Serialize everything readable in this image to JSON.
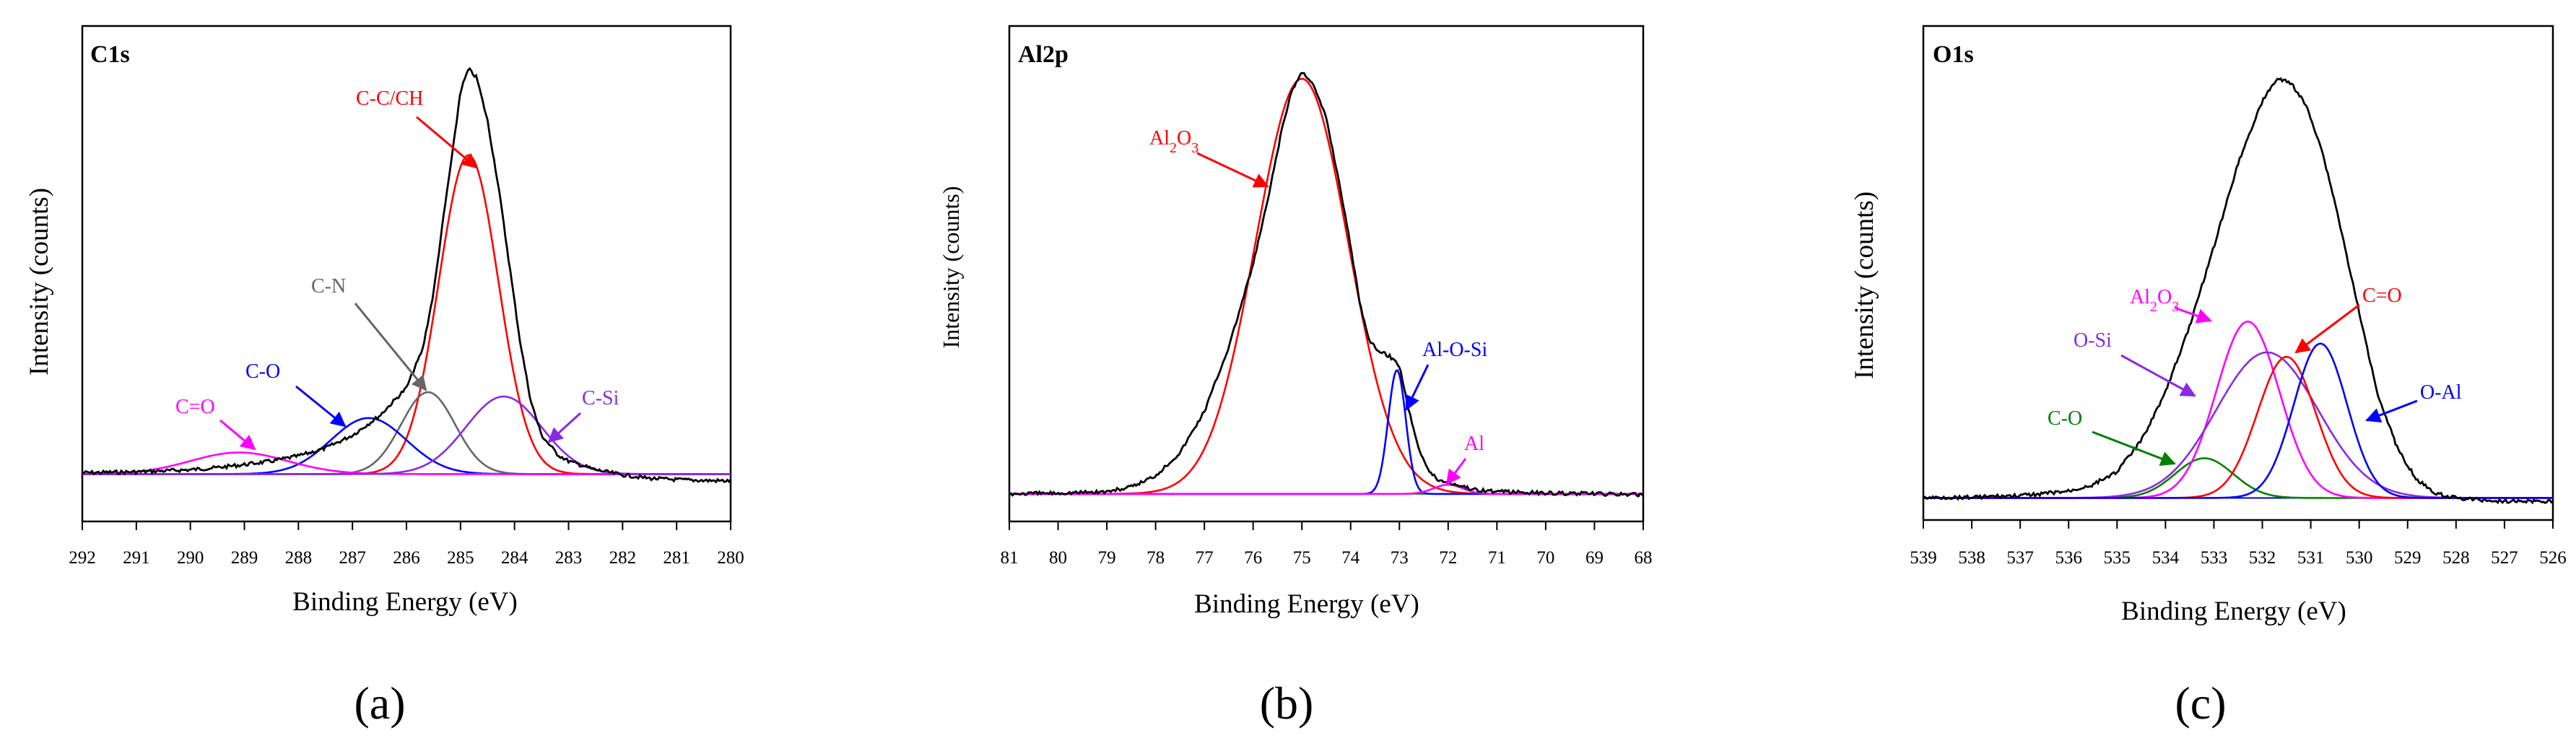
{
  "chart_data": [
    {
      "type": "line",
      "panel_label": "(a)",
      "title": "C1s",
      "xlabel": "Binding Energy (eV)",
      "ylabel": "Intensity (counts)",
      "xlim": [
        292,
        280
      ],
      "x_reversed": true,
      "x_ticks": [
        292,
        291,
        290,
        289,
        288,
        287,
        286,
        285,
        284,
        283,
        282,
        281,
        280
      ],
      "y_ticks_shown": false,
      "ylim": [
        0,
        1.15
      ],
      "baseline": 0.11,
      "measured": {
        "color": "#000000",
        "points": [
          [
            292,
            0.113
          ],
          [
            291,
            0.115
          ],
          [
            290,
            0.12
          ],
          [
            289.5,
            0.125
          ],
          [
            289,
            0.132
          ],
          [
            288.5,
            0.14
          ],
          [
            288,
            0.152
          ],
          [
            287.5,
            0.17
          ],
          [
            287,
            0.2
          ],
          [
            286.5,
            0.245
          ],
          [
            286,
            0.31
          ],
          [
            285.7,
            0.4
          ],
          [
            285.5,
            0.53
          ],
          [
            285.3,
            0.72
          ],
          [
            285.1,
            0.9
          ],
          [
            285.0,
            1.0
          ],
          [
            284.85,
            1.05
          ],
          [
            284.7,
            1.03
          ],
          [
            284.5,
            0.93
          ],
          [
            284.3,
            0.78
          ],
          [
            284.1,
            0.6
          ],
          [
            283.9,
            0.42
          ],
          [
            283.7,
            0.28
          ],
          [
            283.5,
            0.2
          ],
          [
            283.2,
            0.155
          ],
          [
            283,
            0.14
          ],
          [
            282.5,
            0.12
          ],
          [
            282,
            0.108
          ],
          [
            281.5,
            0.1
          ],
          [
            281,
            0.097
          ],
          [
            280.5,
            0.095
          ],
          [
            280,
            0.094
          ]
        ]
      },
      "components": [
        {
          "name": "C-C/CH",
          "color": "#ff0000",
          "center": 284.85,
          "height": 0.74,
          "sigma": 0.55
        },
        {
          "name": "C-N",
          "color": "#666666",
          "center": 285.6,
          "height": 0.19,
          "sigma": 0.5
        },
        {
          "name": "C-O",
          "color": "#0000ff",
          "center": 286.7,
          "height": 0.13,
          "sigma": 0.7
        },
        {
          "name": "C=O",
          "color": "#ff00ff",
          "center": 289.1,
          "height": 0.05,
          "sigma": 0.9
        },
        {
          "name": "C-Si",
          "color": "#8a2be2",
          "center": 284.2,
          "height": 0.18,
          "sigma": 0.7
        }
      ],
      "annotations": [
        {
          "text": "C-C/CH",
          "color": "#ff0000"
        },
        {
          "text": "C-N",
          "color": "#666666"
        },
        {
          "text": "C-O",
          "color": "#0000ff"
        },
        {
          "text": "C=O",
          "color": "#ff00ff"
        },
        {
          "text": "C-Si",
          "color": "#8a2be2"
        }
      ]
    },
    {
      "type": "line",
      "panel_label": "(b)",
      "title": "Al2p",
      "xlabel": "Binding Energy (eV)",
      "ylabel": "Intensity (counts)",
      "xlim": [
        81,
        68
      ],
      "x_reversed": true,
      "x_ticks": [
        81,
        80,
        79,
        78,
        77,
        76,
        75,
        74,
        73,
        72,
        71,
        70,
        69,
        68
      ],
      "y_ticks_shown": false,
      "ylim": [
        0,
        1.08
      ],
      "baseline": 0.06,
      "measured": {
        "color": "#000000",
        "points": [
          [
            81,
            0.06
          ],
          [
            80,
            0.062
          ],
          [
            79,
            0.065
          ],
          [
            78.5,
            0.075
          ],
          [
            78,
            0.1
          ],
          [
            77.5,
            0.15
          ],
          [
            77,
            0.24
          ],
          [
            76.5,
            0.38
          ],
          [
            76,
            0.56
          ],
          [
            75.7,
            0.7
          ],
          [
            75.4,
            0.86
          ],
          [
            75.2,
            0.94
          ],
          [
            75.0,
            0.98
          ],
          [
            74.8,
            0.96
          ],
          [
            74.5,
            0.88
          ],
          [
            74.2,
            0.72
          ],
          [
            74,
            0.6
          ],
          [
            73.8,
            0.47
          ],
          [
            73.6,
            0.39
          ],
          [
            73.4,
            0.37
          ],
          [
            73.2,
            0.36
          ],
          [
            73.0,
            0.34
          ],
          [
            72.8,
            0.24
          ],
          [
            72.6,
            0.16
          ],
          [
            72.4,
            0.11
          ],
          [
            72.2,
            0.09
          ],
          [
            72.0,
            0.085
          ],
          [
            71.8,
            0.08
          ],
          [
            71.5,
            0.07
          ],
          [
            71,
            0.065
          ],
          [
            70,
            0.062
          ],
          [
            69,
            0.06
          ],
          [
            68,
            0.058
          ]
        ]
      },
      "components": [
        {
          "name": "Al2O3",
          "color": "#ff0000",
          "center": 75.0,
          "height": 0.905,
          "sigma": 0.95
        },
        {
          "name": "Al-O-Si",
          "color": "#0000ff",
          "center": 73.05,
          "height": 0.27,
          "sigma": 0.18
        },
        {
          "name": "Al",
          "color": "#ff00ff",
          "center": 72.0,
          "height": 0.02,
          "sigma": 0.3
        }
      ],
      "baseline_color": "#008000",
      "annotations": [
        {
          "text_parts": [
            "Al",
            "2",
            "O",
            "3"
          ],
          "color": "#ff0000"
        },
        {
          "text": "Al-O-Si",
          "color": "#0000ff"
        },
        {
          "text": "Al",
          "color": "#ff00ff"
        }
      ]
    },
    {
      "type": "line",
      "panel_label": "(c)",
      "title": "O1s",
      "xlabel": "Binding Energy (eV)",
      "ylabel": "Intensity (counts)",
      "xlim": [
        539,
        526
      ],
      "x_reversed": true,
      "x_ticks": [
        539,
        538,
        537,
        536,
        535,
        534,
        533,
        532,
        531,
        530,
        529,
        528,
        527,
        526
      ],
      "y_ticks_shown": false,
      "ylim": [
        0,
        1.12
      ],
      "baseline": 0.05,
      "measured": {
        "color": "#000000",
        "points": [
          [
            539,
            0.05
          ],
          [
            538,
            0.052
          ],
          [
            537,
            0.055
          ],
          [
            536,
            0.065
          ],
          [
            535.5,
            0.08
          ],
          [
            535,
            0.11
          ],
          [
            534.5,
            0.18
          ],
          [
            534,
            0.29
          ],
          [
            533.5,
            0.44
          ],
          [
            533,
            0.62
          ],
          [
            532.5,
            0.81
          ],
          [
            532,
            0.95
          ],
          [
            531.7,
            1.0
          ],
          [
            531.4,
            0.99
          ],
          [
            531.1,
            0.94
          ],
          [
            530.8,
            0.85
          ],
          [
            530.5,
            0.72
          ],
          [
            530.2,
            0.57
          ],
          [
            529.9,
            0.42
          ],
          [
            529.6,
            0.28
          ],
          [
            529.2,
            0.16
          ],
          [
            528.8,
            0.09
          ],
          [
            528.4,
            0.06
          ],
          [
            528,
            0.05
          ],
          [
            527.5,
            0.045
          ],
          [
            527,
            0.043
          ],
          [
            526,
            0.042
          ]
        ]
      },
      "components": [
        {
          "name": "C-O",
          "color": "#008000",
          "center": 533.2,
          "height": 0.09,
          "sigma": 0.6
        },
        {
          "name": "Al2O3",
          "color": "#ff00ff",
          "center": 532.3,
          "height": 0.4,
          "sigma": 0.65
        },
        {
          "name": "O-Si",
          "color": "#8a2be2",
          "center": 531.9,
          "height": 0.33,
          "sigma": 1.05
        },
        {
          "name": "C=O",
          "color": "#ff0000",
          "center": 531.5,
          "height": 0.32,
          "sigma": 0.6
        },
        {
          "name": "O-Al",
          "color": "#0000ff",
          "center": 530.8,
          "height": 0.35,
          "sigma": 0.55
        }
      ],
      "annotations": [
        {
          "text_parts": [
            "Al",
            "2",
            "O",
            "3"
          ],
          "color": "#ff00ff"
        },
        {
          "text": "C=O",
          "color": "#ff0000"
        },
        {
          "text": "O-Si",
          "color": "#8a2be2"
        },
        {
          "text": "O-Al",
          "color": "#0000ff"
        },
        {
          "text": "C-O",
          "color": "#008000"
        }
      ]
    }
  ]
}
